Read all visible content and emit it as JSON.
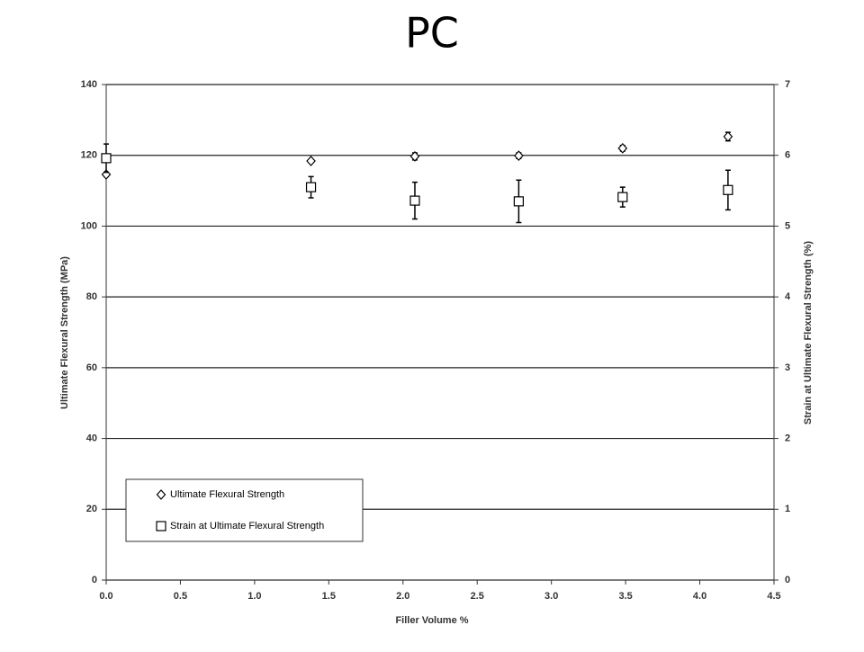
{
  "chart_data": {
    "type": "scatter",
    "title": "PC",
    "x_label": "Filler Volume %",
    "y_label": "Ultimate Flexural Strength (MPa)",
    "y2_label": "Strain at Ultimate Flexural Strength (%)",
    "x": [
      0.0,
      1.38,
      2.08,
      2.78,
      3.48,
      4.19
    ],
    "series": [
      {
        "name": "Ultimate Flexural Strength",
        "marker": "diamond",
        "color": "#000000",
        "axis": "y",
        "values": [
          114.6,
          118.4,
          119.7,
          119.9,
          122.0,
          125.3
        ],
        "errors": [
          0.6,
          0.4,
          1.0,
          0.8,
          0.8,
          1.2
        ]
      },
      {
        "name": "Strain at Ultimate Flexural Strength",
        "marker": "square",
        "color": "#000000",
        "axis": "y2",
        "values": [
          5.96,
          5.55,
          5.36,
          5.35,
          5.41,
          5.51
        ],
        "errors": [
          0.2,
          0.15,
          0.26,
          0.3,
          0.14,
          0.28
        ]
      }
    ],
    "xlim": [
      0,
      4.5
    ],
    "xticks": [
      {
        "value": 0,
        "label": "0.0"
      },
      0.5,
      {
        "value": 1,
        "label": "1.0"
      },
      1.5,
      {
        "value": 2,
        "label": "2.0"
      },
      2.5,
      {
        "value": 3,
        "label": "3.0"
      },
      3.5,
      {
        "value": 4,
        "label": "4.0"
      },
      4.5
    ],
    "ylim": [
      0,
      140
    ],
    "yticks": [
      0,
      20,
      40,
      60,
      80,
      100,
      120,
      140
    ],
    "y2lim": [
      0,
      7
    ],
    "y2ticks": [
      0,
      1,
      2,
      3,
      4,
      5,
      6,
      7
    ],
    "grid": true,
    "legend": "lower left"
  }
}
